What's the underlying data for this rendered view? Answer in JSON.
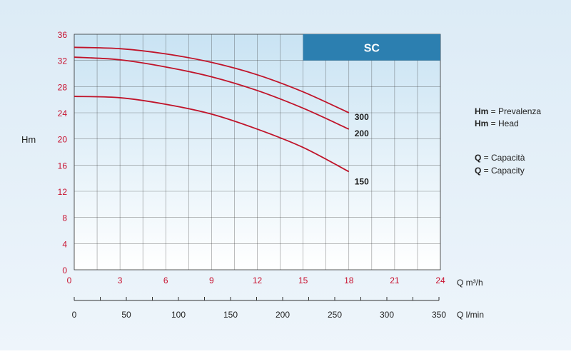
{
  "chart_data": {
    "type": "line",
    "title": "",
    "badge": "SC",
    "ylabel": "Hm",
    "ylim": [
      0,
      36
    ],
    "y_ticks": [
      "0",
      "4",
      "8",
      "12",
      "16",
      "20",
      "24",
      "28",
      "32",
      "36"
    ],
    "x_axes": [
      {
        "label": "Q m³/h",
        "range": [
          0,
          24
        ],
        "ticks": [
          "0",
          "3",
          "6",
          "9",
          "12",
          "15",
          "18",
          "21",
          "24"
        ]
      },
      {
        "label": "Q l/min",
        "range": [
          0,
          350
        ],
        "ticks": [
          "0",
          "50",
          "100",
          "150",
          "200",
          "250",
          "300",
          "350"
        ]
      }
    ],
    "grid": true,
    "series": [
      {
        "name": "300",
        "x": [
          0,
          3,
          6,
          9,
          12,
          15,
          18
        ],
        "y": [
          34.0,
          33.8,
          33.0,
          31.7,
          29.8,
          27.2,
          24.0
        ]
      },
      {
        "name": "200",
        "x": [
          0,
          3,
          6,
          9,
          12,
          15,
          18
        ],
        "y": [
          32.5,
          32.1,
          31.0,
          29.5,
          27.4,
          24.7,
          21.5
        ]
      },
      {
        "name": "150",
        "x": [
          0,
          3,
          6,
          9,
          12,
          15,
          18
        ],
        "y": [
          26.5,
          26.3,
          25.3,
          23.8,
          21.5,
          18.7,
          15.0
        ]
      }
    ],
    "legend_notes": [
      {
        "abbr": "Hm",
        "text": " = Prevalenza"
      },
      {
        "abbr": "Hm",
        "text": " = Head"
      },
      {
        "abbr": "Q",
        "text": " = Capacità"
      },
      {
        "abbr": "Q",
        "text": " = Capacity"
      }
    ],
    "colors": {
      "curve": "#c0142a",
      "tick_red": "#c8102e",
      "badge_bg": "#2c7fb0",
      "grid": "#3c3c3c",
      "plot_top": "#c9e3f3",
      "plot_bottom": "#ffffff",
      "page_bg": "#e6f1f9"
    }
  }
}
